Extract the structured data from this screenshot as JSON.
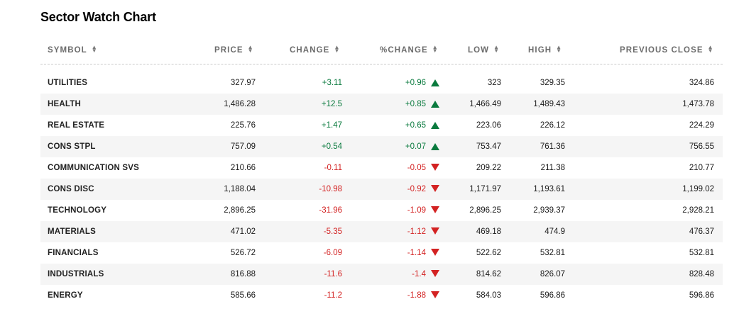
{
  "title": "Sector Watch Chart",
  "columns": {
    "symbol": "SYMBOL",
    "price": "PRICE",
    "change": "CHANGE",
    "pchange": "%CHANGE",
    "low": "LOW",
    "high": "HIGH",
    "prev": "PREVIOUS CLOSE"
  },
  "colors": {
    "up": "#0a7a3e",
    "down": "#d32222"
  },
  "rows": [
    {
      "symbol": "UTILITIES",
      "price": "327.97",
      "change": "+3.11",
      "pchange": "+0.96",
      "low": "323",
      "high": "329.35",
      "prev": "324.86",
      "dir": "up"
    },
    {
      "symbol": "HEALTH",
      "price": "1,486.28",
      "change": "+12.5",
      "pchange": "+0.85",
      "low": "1,466.49",
      "high": "1,489.43",
      "prev": "1,473.78",
      "dir": "up"
    },
    {
      "symbol": "REAL ESTATE",
      "price": "225.76",
      "change": "+1.47",
      "pchange": "+0.65",
      "low": "223.06",
      "high": "226.12",
      "prev": "224.29",
      "dir": "up"
    },
    {
      "symbol": "CONS STPL",
      "price": "757.09",
      "change": "+0.54",
      "pchange": "+0.07",
      "low": "753.47",
      "high": "761.36",
      "prev": "756.55",
      "dir": "up"
    },
    {
      "symbol": "COMMUNICATION SVS",
      "price": "210.66",
      "change": "-0.11",
      "pchange": "-0.05",
      "low": "209.22",
      "high": "211.38",
      "prev": "210.77",
      "dir": "down"
    },
    {
      "symbol": "CONS DISC",
      "price": "1,188.04",
      "change": "-10.98",
      "pchange": "-0.92",
      "low": "1,171.97",
      "high": "1,193.61",
      "prev": "1,199.02",
      "dir": "down"
    },
    {
      "symbol": "TECHNOLOGY",
      "price": "2,896.25",
      "change": "-31.96",
      "pchange": "-1.09",
      "low": "2,896.25",
      "high": "2,939.37",
      "prev": "2,928.21",
      "dir": "down"
    },
    {
      "symbol": "MATERIALS",
      "price": "471.02",
      "change": "-5.35",
      "pchange": "-1.12",
      "low": "469.18",
      "high": "474.9",
      "prev": "476.37",
      "dir": "down"
    },
    {
      "symbol": "FINANCIALS",
      "price": "526.72",
      "change": "-6.09",
      "pchange": "-1.14",
      "low": "522.62",
      "high": "532.81",
      "prev": "532.81",
      "dir": "down"
    },
    {
      "symbol": "INDUSTRIALS",
      "price": "816.88",
      "change": "-11.6",
      "pchange": "-1.4",
      "low": "814.62",
      "high": "826.07",
      "prev": "828.48",
      "dir": "down"
    },
    {
      "symbol": "ENERGY",
      "price": "585.66",
      "change": "-11.2",
      "pchange": "-1.88",
      "low": "584.03",
      "high": "596.86",
      "prev": "596.86",
      "dir": "down"
    }
  ]
}
